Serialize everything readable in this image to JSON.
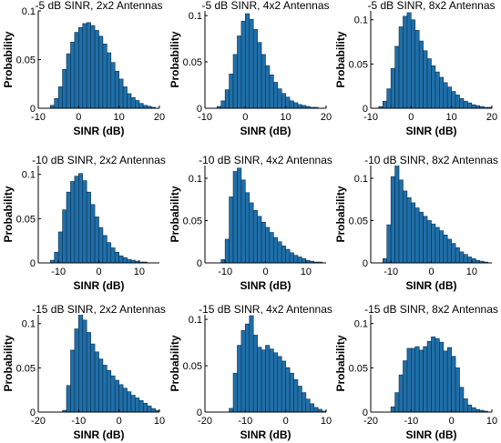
{
  "figure": {
    "colors": {
      "bar_fill": "#1f6fa9",
      "bar_edge": "#0b2f4d",
      "axis": "#000000",
      "background": "#ffffff"
    },
    "xlabel": "SINR (dB)",
    "ylabel": "Probability"
  },
  "chart_data": [
    {
      "type": "bar",
      "title": "-5 dB SINR, 2x2 Antennas",
      "xlabel": "SINR (dB)",
      "ylabel": "Probability",
      "xlim": [
        -10,
        20
      ],
      "ylim": [
        0,
        0.1
      ],
      "xticks": [
        "-10",
        "0",
        "10",
        "20"
      ],
      "yticks": [
        "0",
        "0.05",
        "0.1"
      ],
      "bin_width": 1,
      "bin_start": -7,
      "values": [
        0.003,
        0.01,
        0.022,
        0.04,
        0.056,
        0.068,
        0.078,
        0.083,
        0.087,
        0.088,
        0.085,
        0.08,
        0.074,
        0.066,
        0.057,
        0.047,
        0.038,
        0.03,
        0.022,
        0.015,
        0.011,
        0.008,
        0.005,
        0.003,
        0.002,
        0.001
      ]
    },
    {
      "type": "bar",
      "title": "-5 dB SINR, 4x2 Antennas",
      "xlabel": "SINR (dB)",
      "ylabel": "Probability",
      "xlim": [
        -10,
        20
      ],
      "ylim": [
        0,
        0.105
      ],
      "xticks": [
        "-10",
        "0",
        "10",
        "20"
      ],
      "yticks": [
        "0",
        "0.05",
        "0.1"
      ],
      "bin_width": 1,
      "bin_start": -7,
      "values": [
        0.002,
        0.008,
        0.02,
        0.037,
        0.058,
        0.078,
        0.094,
        0.102,
        0.096,
        0.085,
        0.071,
        0.058,
        0.046,
        0.036,
        0.028,
        0.021,
        0.016,
        0.012,
        0.008,
        0.006,
        0.004,
        0.003,
        0.002,
        0.001,
        0.001
      ]
    },
    {
      "type": "bar",
      "title": "-5 dB SINR, 8x2 Antennas",
      "xlabel": "SINR (dB)",
      "ylabel": "Probability",
      "xlim": [
        -10,
        20
      ],
      "ylim": [
        0,
        0.11
      ],
      "xticks": [
        "-10",
        "0",
        "10",
        "20"
      ],
      "yticks": [
        "0",
        "0.05",
        "0.1"
      ],
      "bin_width": 1,
      "bin_start": -8,
      "values": [
        0.002,
        0.008,
        0.022,
        0.045,
        0.07,
        0.092,
        0.104,
        0.108,
        0.1,
        0.088,
        0.076,
        0.065,
        0.056,
        0.048,
        0.041,
        0.035,
        0.029,
        0.024,
        0.019,
        0.015,
        0.011,
        0.008,
        0.006,
        0.004,
        0.003,
        0.002,
        0.001,
        0.001
      ]
    },
    {
      "type": "bar",
      "title": "-10 dB SINR, 2x2 Antennas",
      "xlabel": "SINR (dB)",
      "ylabel": "Probability",
      "xlim": [
        -15,
        15
      ],
      "ylim": [
        0,
        0.11
      ],
      "xticks": [
        "-10",
        "0",
        "10"
      ],
      "yticks": [
        "0",
        "0.05",
        "0.1"
      ],
      "bin_width": 1,
      "bin_start": -12,
      "values": [
        0.003,
        0.012,
        0.035,
        0.06,
        0.08,
        0.092,
        0.098,
        0.101,
        0.093,
        0.08,
        0.066,
        0.052,
        0.04,
        0.031,
        0.023,
        0.017,
        0.012,
        0.008,
        0.006,
        0.004,
        0.003,
        0.002,
        0.001,
        0.001
      ]
    },
    {
      "type": "bar",
      "title": "-10 dB SINR, 4x2 Antennas",
      "xlabel": "SINR (dB)",
      "ylabel": "Probability",
      "xlim": [
        -15,
        15
      ],
      "ylim": [
        0,
        0.115
      ],
      "xticks": [
        "-10",
        "0",
        "10"
      ],
      "yticks": [
        "0",
        "0.05",
        "0.1"
      ],
      "bin_width": 1,
      "bin_start": -11,
      "values": [
        0.004,
        0.028,
        0.078,
        0.108,
        0.112,
        0.098,
        0.083,
        0.071,
        0.062,
        0.055,
        0.048,
        0.042,
        0.036,
        0.03,
        0.025,
        0.02,
        0.016,
        0.012,
        0.009,
        0.007,
        0.005,
        0.003,
        0.002,
        0.001,
        0.001
      ]
    },
    {
      "type": "bar",
      "title": "-10 dB SINR, 8x2 Antennas",
      "xlabel": "SINR (dB)",
      "ylabel": "Probability",
      "xlim": [
        -15,
        15
      ],
      "ylim": [
        0,
        0.115
      ],
      "xticks": [
        "-10",
        "0",
        "10"
      ],
      "yticks": [
        "0",
        "0.05",
        "0.1"
      ],
      "bin_width": 1,
      "bin_start": -12,
      "values": [
        0.005,
        0.045,
        0.102,
        0.118,
        0.098,
        0.085,
        0.077,
        0.071,
        0.065,
        0.06,
        0.055,
        0.05,
        0.046,
        0.042,
        0.038,
        0.033,
        0.028,
        0.023,
        0.018,
        0.013,
        0.01,
        0.007,
        0.005,
        0.003,
        0.002,
        0.001
      ]
    },
    {
      "type": "bar",
      "title": "-15 dB SINR, 2x2 Antennas",
      "xlabel": "SINR (dB)",
      "ylabel": "Probability",
      "xlim": [
        -20,
        10
      ],
      "ylim": [
        0,
        0.11
      ],
      "xticks": [
        "-20",
        "-10",
        "0",
        "10"
      ],
      "yticks": [
        "0",
        "0.05",
        "0.1"
      ],
      "bin_width": 1,
      "bin_start": -14,
      "values": [
        0.002,
        0.03,
        0.07,
        0.094,
        0.111,
        0.104,
        0.09,
        0.077,
        0.068,
        0.06,
        0.053,
        0.047,
        0.041,
        0.036,
        0.031,
        0.027,
        0.023,
        0.019,
        0.016,
        0.013,
        0.01,
        0.007,
        0.004,
        0.002
      ]
    },
    {
      "type": "bar",
      "title": "-15 dB SINR, 4x2 Antennas",
      "xlabel": "SINR (dB)",
      "ylabel": "Probability",
      "xlim": [
        -20,
        10
      ],
      "ylim": [
        0,
        0.105
      ],
      "xticks": [
        "-20",
        "-10",
        "0",
        "10"
      ],
      "yticks": [
        "0",
        "0.05",
        "0.1"
      ],
      "bin_width": 1,
      "bin_start": -14,
      "values": [
        0.004,
        0.042,
        0.072,
        0.088,
        0.095,
        0.104,
        0.083,
        0.07,
        0.067,
        0.072,
        0.068,
        0.064,
        0.06,
        0.055,
        0.048,
        0.042,
        0.035,
        0.028,
        0.021,
        0.014,
        0.009,
        0.005,
        0.003,
        0.001
      ]
    },
    {
      "type": "bar",
      "title": "-15 dB SINR, 8x2 Antennas",
      "xlabel": "SINR (dB)",
      "ylabel": "Probability",
      "xlim": [
        -20,
        10
      ],
      "ylim": [
        0,
        0.11
      ],
      "xticks": [
        "-20",
        "-10",
        "0",
        "10"
      ],
      "yticks": [
        "0",
        "0.05",
        "0.1"
      ],
      "bin_width": 1,
      "bin_start": -15,
      "values": [
        0.006,
        0.022,
        0.042,
        0.058,
        0.072,
        0.072,
        0.074,
        0.07,
        0.074,
        0.08,
        0.085,
        0.083,
        0.079,
        0.069,
        0.073,
        0.063,
        0.05,
        0.028,
        0.015,
        0.008,
        0.005,
        0.003,
        0.002,
        0.001
      ]
    }
  ]
}
